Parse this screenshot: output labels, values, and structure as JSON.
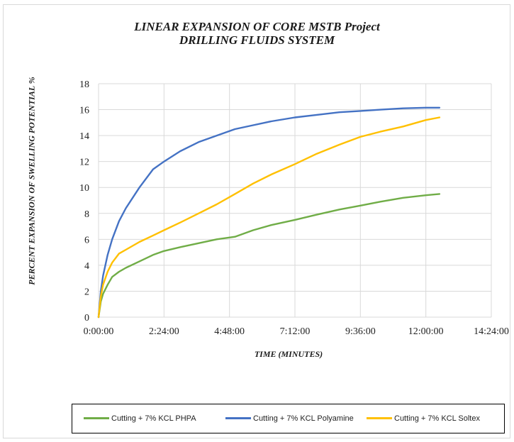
{
  "chart_data": {
    "type": "line",
    "title": "LINEAR EXPANSION OF CORE MSTB Project",
    "subtitle": "DRILLING FLUIDS SYSTEM",
    "xlabel": "TIME (MINUTES)",
    "ylabel": "PERCENT EXPANSION OF SWELLING POTENTIAL %",
    "xlim": [
      0,
      864
    ],
    "ylim": [
      0,
      18
    ],
    "x_ticks": [
      0,
      144,
      288,
      432,
      576,
      720,
      864
    ],
    "x_tick_labels": [
      "0:00:00",
      "2:24:00",
      "4:48:00",
      "7:12:00",
      "9:36:00",
      "12:00:00",
      "14:24:00"
    ],
    "y_ticks": [
      0,
      2,
      4,
      6,
      8,
      10,
      12,
      14,
      16,
      18
    ],
    "y_tick_labels": [
      "0",
      "2",
      "4",
      "6",
      "8",
      "10",
      "12",
      "14",
      "16",
      "18"
    ],
    "grid": "horizontal and vertical",
    "legend_position": "bottom",
    "series": [
      {
        "name": "Cutting + 7% KCL PHPA",
        "color": "#70ad47",
        "x": [
          0,
          5,
          10,
          20,
          30,
          45,
          60,
          90,
          120,
          144,
          180,
          220,
          260,
          300,
          340,
          380,
          432,
          480,
          530,
          576,
          620,
          670,
          720,
          750
        ],
        "y": [
          0,
          1.2,
          1.8,
          2.5,
          3.1,
          3.5,
          3.8,
          4.3,
          4.8,
          5.1,
          5.4,
          5.7,
          6.0,
          6.2,
          6.7,
          7.1,
          7.5,
          7.9,
          8.3,
          8.6,
          8.9,
          9.2,
          9.4,
          9.5
        ]
      },
      {
        "name": "Cutting + 7% KCL Polyamine",
        "color": "#4472c4",
        "x": [
          0,
          5,
          10,
          20,
          30,
          45,
          60,
          90,
          120,
          144,
          180,
          220,
          260,
          300,
          340,
          380,
          432,
          480,
          530,
          576,
          620,
          670,
          720,
          750
        ],
        "y": [
          0,
          2.0,
          3.2,
          4.8,
          6.0,
          7.4,
          8.4,
          10.0,
          11.4,
          12.0,
          12.8,
          13.5,
          14.0,
          14.5,
          14.8,
          15.1,
          15.4,
          15.6,
          15.8,
          15.9,
          16.0,
          16.1,
          16.15,
          16.15
        ]
      },
      {
        "name": "Cutting + 7% KCL Soltex",
        "color": "#ffc000",
        "x": [
          0,
          5,
          10,
          20,
          30,
          45,
          60,
          90,
          120,
          144,
          180,
          220,
          260,
          300,
          340,
          380,
          432,
          480,
          530,
          576,
          620,
          670,
          720,
          750
        ],
        "y": [
          0,
          1.6,
          2.5,
          3.5,
          4.2,
          4.9,
          5.2,
          5.8,
          6.3,
          6.7,
          7.3,
          8.0,
          8.7,
          9.5,
          10.3,
          11.0,
          11.8,
          12.6,
          13.3,
          13.9,
          14.3,
          14.7,
          15.2,
          15.4
        ]
      }
    ]
  }
}
